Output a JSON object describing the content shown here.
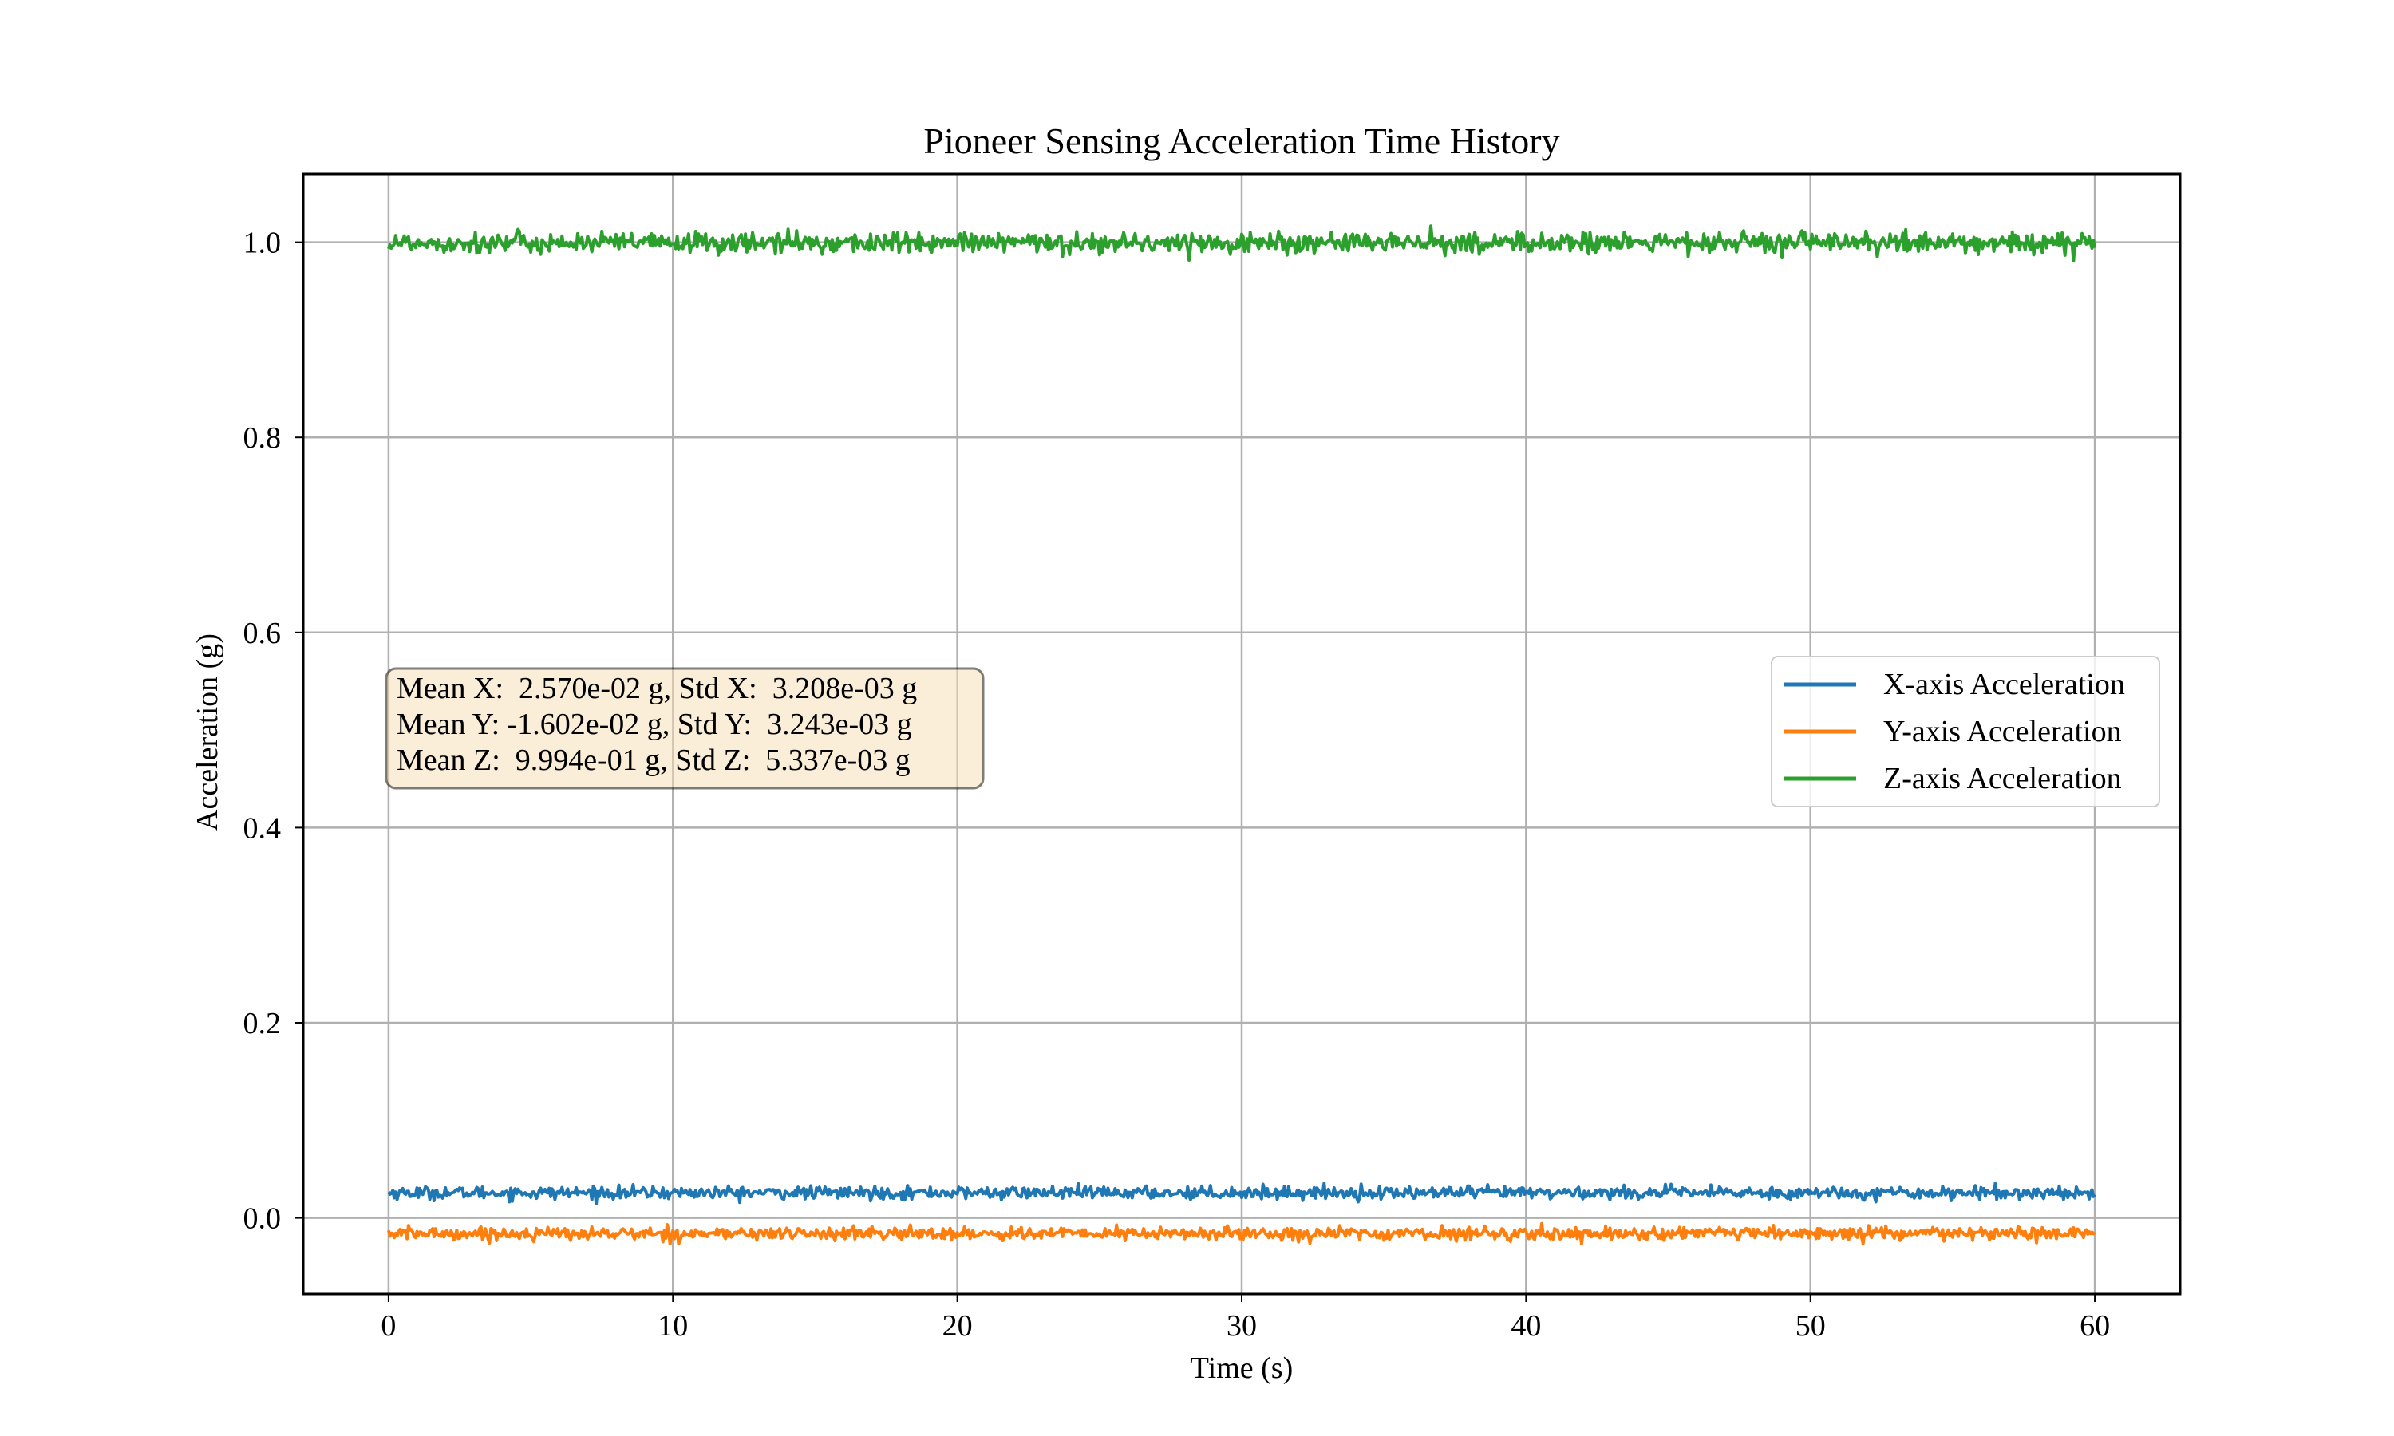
{
  "chart_data": {
    "type": "line",
    "title": "Pioneer Sensing Acceleration Time History",
    "xlabel": "Time (s)",
    "ylabel": "Acceleration (g)",
    "xlim": [
      -3,
      63
    ],
    "ylim": [
      -0.078,
      1.07
    ],
    "x_ticks": [
      0,
      10,
      20,
      30,
      40,
      50,
      60
    ],
    "x_tick_labels": [
      "0",
      "10",
      "20",
      "30",
      "40",
      "50",
      "60"
    ],
    "y_ticks": [
      0.0,
      0.2,
      0.4,
      0.6,
      0.8,
      1.0
    ],
    "y_tick_labels": [
      "0.0",
      "0.2",
      "0.4",
      "0.6",
      "0.8",
      "1.0"
    ],
    "grid": true,
    "legend_placement": "center-right",
    "x_range": [
      0,
      60
    ],
    "series": [
      {
        "name": "X-axis Acceleration",
        "color": "#1f77b4",
        "mean": 0.0257,
        "std": 0.003208
      },
      {
        "name": "Y-axis Acceleration",
        "color": "#ff7f0e",
        "mean": -0.01602,
        "std": 0.003243
      },
      {
        "name": "Z-axis Acceleration",
        "color": "#2ca02c",
        "mean": 0.9994,
        "std": 0.005337
      }
    ],
    "annotation": {
      "lines": [
        "Mean X:  2.570e-02 g, Std X:  3.208e-03 g",
        "Mean Y: -1.602e-02 g, Std Y:  3.243e-03 g",
        "Mean Z:  9.994e-01 g, Std Z:  5.337e-03 g"
      ],
      "background": "#f5deb3",
      "placement": "center-left"
    }
  }
}
